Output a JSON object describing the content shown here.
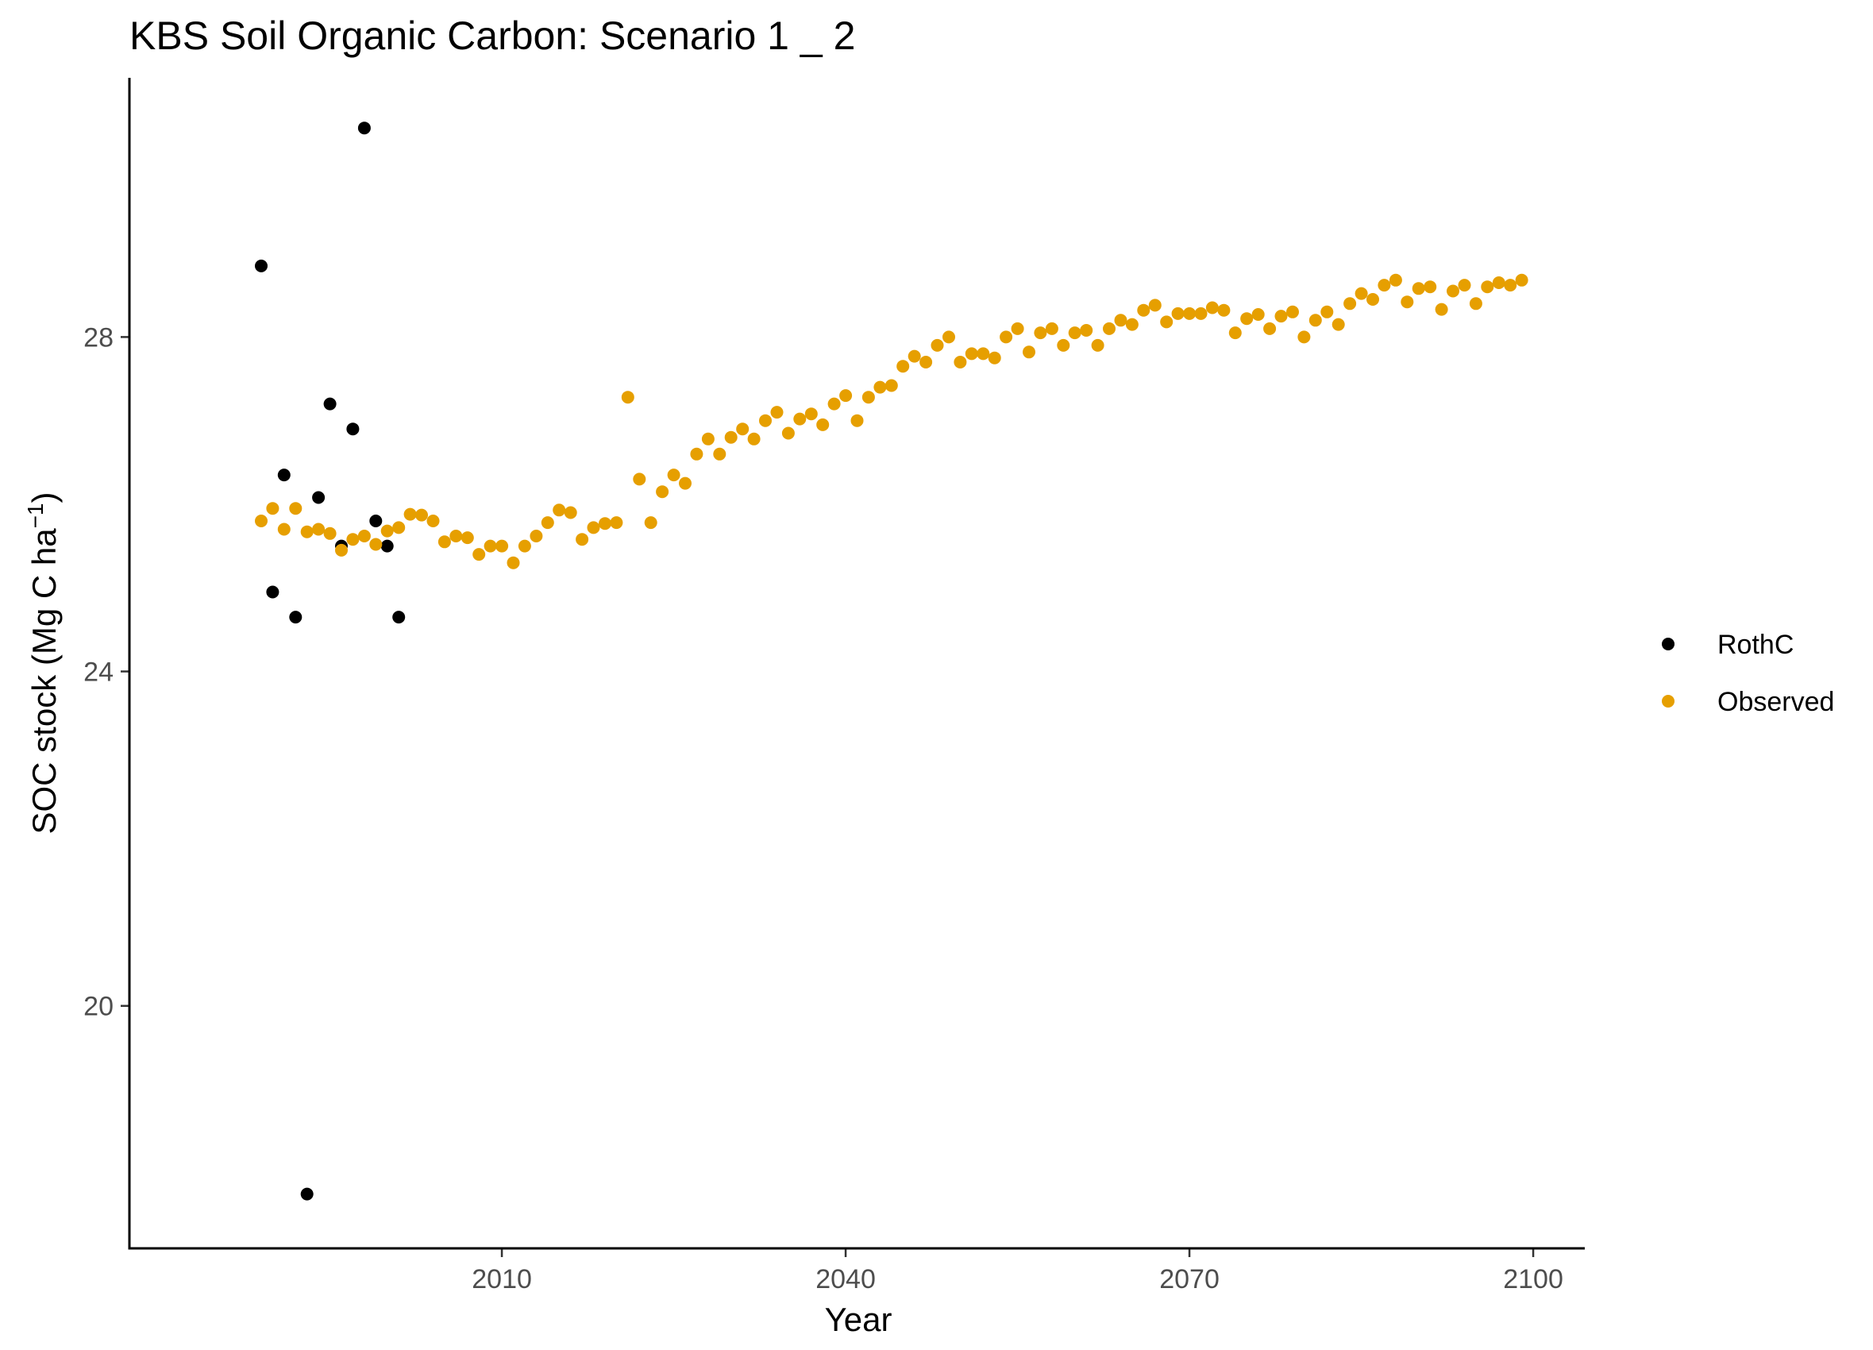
{
  "chart_data": {
    "type": "scatter",
    "title": "KBS Soil Organic Carbon: Scenario  1 _ 2",
    "xlabel": "Year",
    "ylabel_main": "SOC stock (Mg C ha",
    "ylabel_sup": "−1",
    "ylabel_end": ")",
    "xlim": [
      1977.5,
      2104.5
    ],
    "ylim": [
      17.1,
      31.1
    ],
    "x_ticks": [
      2010,
      2040,
      2070,
      2100
    ],
    "y_ticks": [
      20,
      24,
      28
    ],
    "grid": false,
    "legend_position": "right",
    "series": [
      {
        "name": "RothC",
        "color": "#000000",
        "points": [
          [
            1989,
            28.85
          ],
          [
            1990,
            24.95
          ],
          [
            1991,
            26.35
          ],
          [
            1992,
            24.65
          ],
          [
            1993,
            17.75
          ],
          [
            1994,
            26.08
          ],
          [
            1995,
            27.2
          ],
          [
            1996,
            25.5
          ],
          [
            1997,
            26.9
          ],
          [
            1998,
            30.5
          ],
          [
            1999,
            25.8
          ],
          [
            2000,
            25.5
          ],
          [
            2001,
            24.65
          ]
        ]
      },
      {
        "name": "Observed",
        "color": "#E69F00",
        "points": [
          [
            1989,
            25.8
          ],
          [
            1990,
            25.95
          ],
          [
            1991,
            25.7
          ],
          [
            1992,
            25.95
          ],
          [
            1993,
            25.67
          ],
          [
            1994,
            25.7
          ],
          [
            1995,
            25.65
          ],
          [
            1996,
            25.45
          ],
          [
            1997,
            25.58
          ],
          [
            1998,
            25.62
          ],
          [
            1999,
            25.52
          ],
          [
            2000,
            25.68
          ],
          [
            2001,
            25.72
          ],
          [
            2002,
            25.88
          ],
          [
            2003,
            25.87
          ],
          [
            2004,
            25.8
          ],
          [
            2005,
            25.55
          ],
          [
            2006,
            25.62
          ],
          [
            2007,
            25.6
          ],
          [
            2008,
            25.4
          ],
          [
            2009,
            25.5
          ],
          [
            2010,
            25.5
          ],
          [
            2011,
            25.3
          ],
          [
            2012,
            25.5
          ],
          [
            2013,
            25.62
          ],
          [
            2014,
            25.78
          ],
          [
            2015,
            25.93
          ],
          [
            2016,
            25.9
          ],
          [
            2017,
            25.58
          ],
          [
            2018,
            25.72
          ],
          [
            2019,
            25.77
          ],
          [
            2020,
            25.78
          ],
          [
            2021,
            27.28
          ],
          [
            2022,
            26.3
          ],
          [
            2023,
            25.78
          ],
          [
            2024,
            26.15
          ],
          [
            2025,
            26.35
          ],
          [
            2026,
            26.25
          ],
          [
            2027,
            26.6
          ],
          [
            2028,
            26.78
          ],
          [
            2029,
            26.6
          ],
          [
            2030,
            26.8
          ],
          [
            2031,
            26.9
          ],
          [
            2032,
            26.78
          ],
          [
            2033,
            27.0
          ],
          [
            2034,
            27.1
          ],
          [
            2035,
            26.85
          ],
          [
            2036,
            27.02
          ],
          [
            2037,
            27.08
          ],
          [
            2038,
            26.95
          ],
          [
            2039,
            27.2
          ],
          [
            2040,
            27.3
          ],
          [
            2041,
            27.0
          ],
          [
            2042,
            27.28
          ],
          [
            2043,
            27.4
          ],
          [
            2044,
            27.42
          ],
          [
            2045,
            27.65
          ],
          [
            2046,
            27.77
          ],
          [
            2047,
            27.7
          ],
          [
            2048,
            27.9
          ],
          [
            2049,
            28.0
          ],
          [
            2050,
            27.7
          ],
          [
            2051,
            27.8
          ],
          [
            2052,
            27.8
          ],
          [
            2053,
            27.75
          ],
          [
            2054,
            28.0
          ],
          [
            2055,
            28.1
          ],
          [
            2056,
            27.82
          ],
          [
            2057,
            28.05
          ],
          [
            2058,
            28.1
          ],
          [
            2059,
            27.9
          ],
          [
            2060,
            28.05
          ],
          [
            2061,
            28.08
          ],
          [
            2062,
            27.9
          ],
          [
            2063,
            28.1
          ],
          [
            2064,
            28.2
          ],
          [
            2065,
            28.15
          ],
          [
            2066,
            28.32
          ],
          [
            2067,
            28.38
          ],
          [
            2068,
            28.18
          ],
          [
            2069,
            28.28
          ],
          [
            2070,
            28.28
          ],
          [
            2071,
            28.28
          ],
          [
            2072,
            28.35
          ],
          [
            2073,
            28.32
          ],
          [
            2074,
            28.05
          ],
          [
            2075,
            28.22
          ],
          [
            2076,
            28.27
          ],
          [
            2077,
            28.1
          ],
          [
            2078,
            28.25
          ],
          [
            2079,
            28.3
          ],
          [
            2080,
            28.0
          ],
          [
            2081,
            28.2
          ],
          [
            2082,
            28.3
          ],
          [
            2083,
            28.15
          ],
          [
            2084,
            28.4
          ],
          [
            2085,
            28.52
          ],
          [
            2086,
            28.45
          ],
          [
            2087,
            28.62
          ],
          [
            2088,
            28.68
          ],
          [
            2089,
            28.42
          ],
          [
            2090,
            28.58
          ],
          [
            2091,
            28.6
          ],
          [
            2092,
            28.33
          ],
          [
            2093,
            28.55
          ],
          [
            2094,
            28.62
          ],
          [
            2095,
            28.4
          ],
          [
            2096,
            28.6
          ],
          [
            2097,
            28.65
          ],
          [
            2098,
            28.62
          ],
          [
            2099,
            28.68
          ]
        ]
      }
    ]
  }
}
